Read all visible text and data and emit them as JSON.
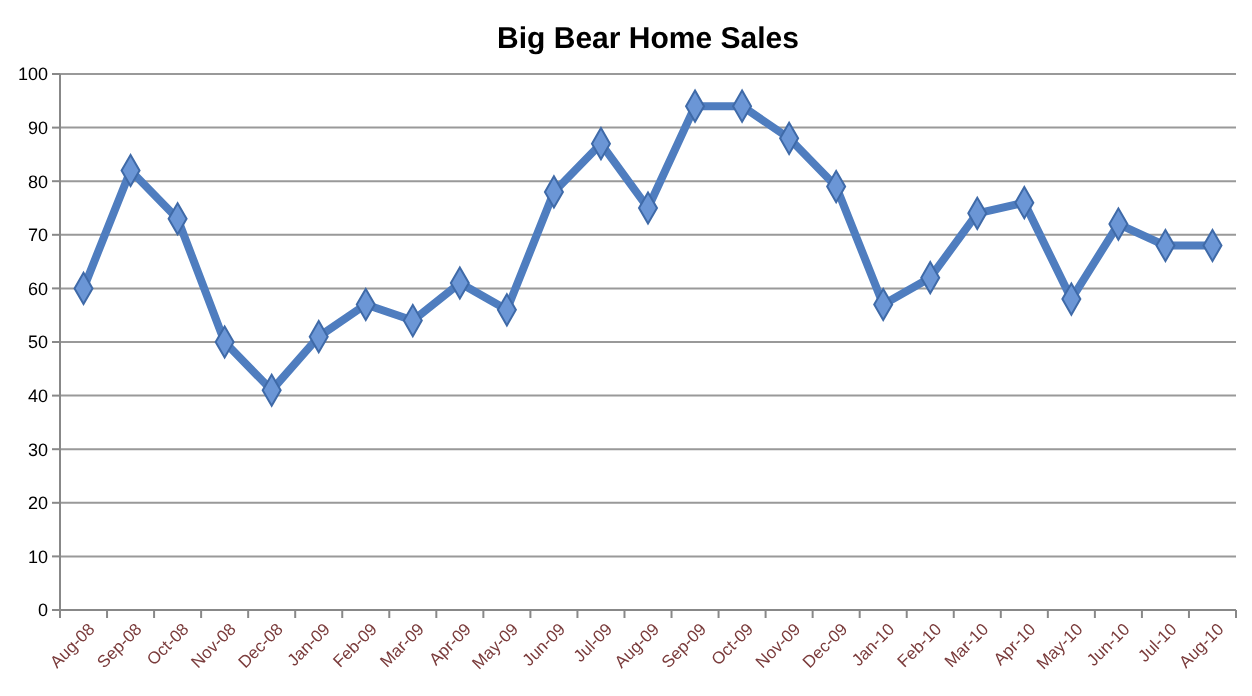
{
  "chart_data": {
    "type": "line",
    "title": "Big Bear Home Sales",
    "categories": [
      "Aug-08",
      "Sep-08",
      "Oct-08",
      "Nov-08",
      "Dec-08",
      "Jan-09",
      "Feb-09",
      "Mar-09",
      "Apr-09",
      "May-09",
      "Jun-09",
      "Jul-09",
      "Aug-09",
      "Sep-09",
      "Oct-09",
      "Nov-09",
      "Dec-09",
      "Jan-10",
      "Feb-10",
      "Mar-10",
      "Apr-10",
      "May-10",
      "Jun-10",
      "Jul-10",
      "Aug-10"
    ],
    "series": [
      {
        "color": "#4f7dbf",
        "values": [
          60,
          82,
          73,
          50,
          41,
          51,
          57,
          54,
          61,
          56,
          78,
          87,
          75,
          94,
          94,
          88,
          79,
          57,
          62,
          74,
          76,
          58,
          72,
          68,
          68
        ]
      }
    ],
    "ylim": [
      0,
      100
    ],
    "yticks": [
      0,
      10,
      20,
      30,
      40,
      50,
      60,
      70,
      80,
      90,
      100
    ],
    "grid": "y",
    "marker": "diamond"
  }
}
